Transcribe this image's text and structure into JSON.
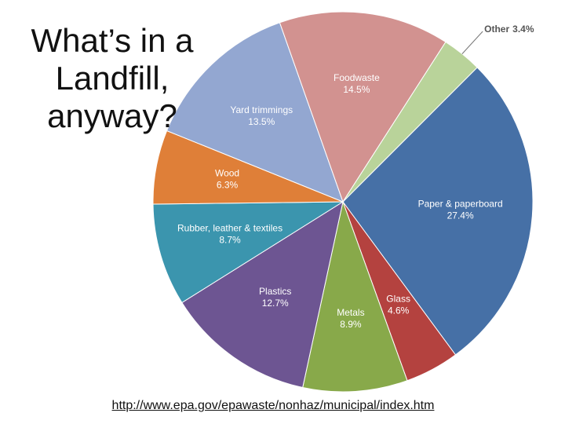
{
  "chart_data": {
    "type": "pie",
    "title": "What’s in a Landfill, anyway?",
    "source": "http://www.epa.gov/epawaste/nonhaz/municipal/index.htm",
    "categories": [
      "Paper & paperboard",
      "Glass",
      "Metals",
      "Plastics",
      "Rubber, leather & textiles",
      "Wood",
      "Yard trimmings",
      "Foodwaste",
      "Other"
    ],
    "values": [
      27.4,
      4.6,
      8.9,
      12.7,
      8.7,
      6.3,
      13.5,
      14.5,
      3.4
    ],
    "value_labels": [
      "27.4%",
      "4.6%",
      "8.9%",
      "12.7%",
      "8.7%",
      "6.3%",
      "13.5%",
      "14.5%",
      "3.4%"
    ],
    "colors": [
      "#4670a6",
      "#b4423f",
      "#88a94a",
      "#6d5592",
      "#3b95ae",
      "#df7f38",
      "#93a7d1",
      "#d29290",
      "#b9d39a"
    ]
  }
}
